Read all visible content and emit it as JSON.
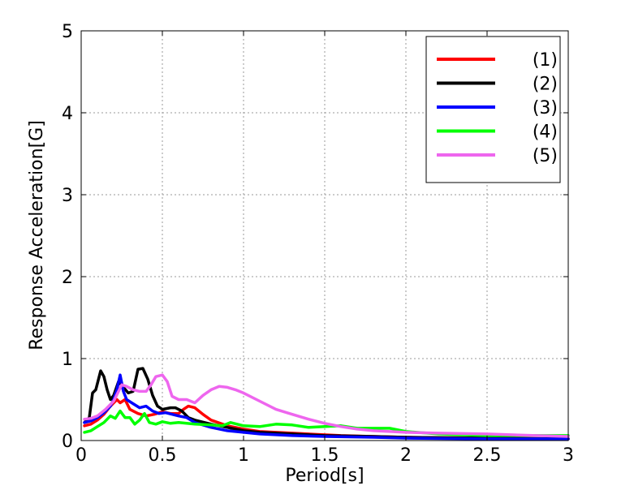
{
  "chart_data": {
    "type": "line",
    "title": "",
    "xlabel": "Period[s]",
    "ylabel": "Response Acceleration[G]",
    "xlim": [
      0,
      3
    ],
    "ylim": [
      0,
      5
    ],
    "x_ticks": [
      "0",
      "0.5",
      "1",
      "1.5",
      "2",
      "2.5",
      "3"
    ],
    "y_ticks": [
      "0",
      "1",
      "2",
      "3",
      "4",
      "5"
    ],
    "grid": true,
    "legend_position": "top-right",
    "series": [
      {
        "name": "(1)",
        "color": "#ff0000",
        "points": [
          [
            0.02,
            0.18
          ],
          [
            0.06,
            0.2
          ],
          [
            0.1,
            0.25
          ],
          [
            0.14,
            0.32
          ],
          [
            0.18,
            0.42
          ],
          [
            0.22,
            0.5
          ],
          [
            0.24,
            0.46
          ],
          [
            0.27,
            0.5
          ],
          [
            0.3,
            0.38
          ],
          [
            0.35,
            0.33
          ],
          [
            0.4,
            0.3
          ],
          [
            0.45,
            0.32
          ],
          [
            0.5,
            0.35
          ],
          [
            0.55,
            0.33
          ],
          [
            0.6,
            0.33
          ],
          [
            0.63,
            0.38
          ],
          [
            0.66,
            0.42
          ],
          [
            0.7,
            0.4
          ],
          [
            0.75,
            0.32
          ],
          [
            0.8,
            0.25
          ],
          [
            0.9,
            0.18
          ],
          [
            1.0,
            0.14
          ],
          [
            1.1,
            0.11
          ],
          [
            1.2,
            0.1
          ],
          [
            1.4,
            0.08
          ],
          [
            1.6,
            0.06
          ],
          [
            1.8,
            0.05
          ],
          [
            2.0,
            0.04
          ],
          [
            2.5,
            0.03
          ],
          [
            3.0,
            0.02
          ]
        ]
      },
      {
        "name": "(2)",
        "color": "#000000",
        "points": [
          [
            0.02,
            0.22
          ],
          [
            0.05,
            0.28
          ],
          [
            0.07,
            0.58
          ],
          [
            0.09,
            0.62
          ],
          [
            0.12,
            0.85
          ],
          [
            0.14,
            0.78
          ],
          [
            0.16,
            0.62
          ],
          [
            0.18,
            0.5
          ],
          [
            0.2,
            0.55
          ],
          [
            0.23,
            0.72
          ],
          [
            0.26,
            0.65
          ],
          [
            0.29,
            0.58
          ],
          [
            0.32,
            0.6
          ],
          [
            0.35,
            0.87
          ],
          [
            0.38,
            0.88
          ],
          [
            0.41,
            0.75
          ],
          [
            0.44,
            0.55
          ],
          [
            0.47,
            0.42
          ],
          [
            0.5,
            0.38
          ],
          [
            0.55,
            0.4
          ],
          [
            0.58,
            0.4
          ],
          [
            0.62,
            0.36
          ],
          [
            0.66,
            0.28
          ],
          [
            0.7,
            0.25
          ],
          [
            0.8,
            0.2
          ],
          [
            0.9,
            0.16
          ],
          [
            1.0,
            0.12
          ],
          [
            1.1,
            0.1
          ],
          [
            1.3,
            0.08
          ],
          [
            1.5,
            0.06
          ],
          [
            1.8,
            0.05
          ],
          [
            2.0,
            0.04
          ],
          [
            2.5,
            0.03
          ],
          [
            3.0,
            0.02
          ]
        ]
      },
      {
        "name": "(3)",
        "color": "#0000ff",
        "points": [
          [
            0.02,
            0.22
          ],
          [
            0.06,
            0.24
          ],
          [
            0.1,
            0.28
          ],
          [
            0.14,
            0.34
          ],
          [
            0.18,
            0.42
          ],
          [
            0.2,
            0.5
          ],
          [
            0.22,
            0.62
          ],
          [
            0.24,
            0.8
          ],
          [
            0.26,
            0.6
          ],
          [
            0.28,
            0.5
          ],
          [
            0.32,
            0.45
          ],
          [
            0.36,
            0.4
          ],
          [
            0.4,
            0.42
          ],
          [
            0.44,
            0.36
          ],
          [
            0.48,
            0.33
          ],
          [
            0.52,
            0.34
          ],
          [
            0.56,
            0.32
          ],
          [
            0.6,
            0.3
          ],
          [
            0.65,
            0.28
          ],
          [
            0.7,
            0.22
          ],
          [
            0.8,
            0.16
          ],
          [
            0.9,
            0.12
          ],
          [
            1.0,
            0.1
          ],
          [
            1.1,
            0.08
          ],
          [
            1.3,
            0.06
          ],
          [
            1.5,
            0.05
          ],
          [
            1.8,
            0.04
          ],
          [
            2.0,
            0.03
          ],
          [
            2.5,
            0.02
          ],
          [
            3.0,
            0.02
          ]
        ]
      },
      {
        "name": "(4)",
        "color": "#00ff00",
        "points": [
          [
            0.02,
            0.1
          ],
          [
            0.06,
            0.12
          ],
          [
            0.1,
            0.17
          ],
          [
            0.14,
            0.22
          ],
          [
            0.18,
            0.3
          ],
          [
            0.21,
            0.27
          ],
          [
            0.24,
            0.36
          ],
          [
            0.27,
            0.28
          ],
          [
            0.3,
            0.28
          ],
          [
            0.33,
            0.2
          ],
          [
            0.36,
            0.25
          ],
          [
            0.39,
            0.33
          ],
          [
            0.42,
            0.22
          ],
          [
            0.46,
            0.2
          ],
          [
            0.5,
            0.23
          ],
          [
            0.55,
            0.21
          ],
          [
            0.6,
            0.22
          ],
          [
            0.7,
            0.2
          ],
          [
            0.8,
            0.19
          ],
          [
            0.87,
            0.18
          ],
          [
            0.92,
            0.22
          ],
          [
            0.96,
            0.2
          ],
          [
            1.0,
            0.18
          ],
          [
            1.1,
            0.17
          ],
          [
            1.2,
            0.2
          ],
          [
            1.3,
            0.19
          ],
          [
            1.4,
            0.16
          ],
          [
            1.5,
            0.17
          ],
          [
            1.6,
            0.18
          ],
          [
            1.7,
            0.15
          ],
          [
            1.8,
            0.15
          ],
          [
            1.9,
            0.15
          ],
          [
            2.0,
            0.11
          ],
          [
            2.2,
            0.08
          ],
          [
            2.5,
            0.06
          ],
          [
            2.8,
            0.06
          ],
          [
            3.0,
            0.06
          ]
        ]
      },
      {
        "name": "(5)",
        "color": "#ee66ee",
        "points": [
          [
            0.02,
            0.26
          ],
          [
            0.06,
            0.27
          ],
          [
            0.1,
            0.3
          ],
          [
            0.15,
            0.38
          ],
          [
            0.2,
            0.48
          ],
          [
            0.25,
            0.68
          ],
          [
            0.28,
            0.66
          ],
          [
            0.32,
            0.62
          ],
          [
            0.36,
            0.6
          ],
          [
            0.4,
            0.6
          ],
          [
            0.43,
            0.68
          ],
          [
            0.46,
            0.78
          ],
          [
            0.5,
            0.8
          ],
          [
            0.53,
            0.72
          ],
          [
            0.56,
            0.54
          ],
          [
            0.6,
            0.5
          ],
          [
            0.65,
            0.5
          ],
          [
            0.7,
            0.46
          ],
          [
            0.75,
            0.55
          ],
          [
            0.8,
            0.62
          ],
          [
            0.85,
            0.66
          ],
          [
            0.9,
            0.65
          ],
          [
            0.95,
            0.62
          ],
          [
            1.0,
            0.58
          ],
          [
            1.1,
            0.48
          ],
          [
            1.2,
            0.38
          ],
          [
            1.3,
            0.32
          ],
          [
            1.4,
            0.26
          ],
          [
            1.5,
            0.21
          ],
          [
            1.6,
            0.17
          ],
          [
            1.7,
            0.14
          ],
          [
            1.8,
            0.12
          ],
          [
            1.9,
            0.11
          ],
          [
            2.0,
            0.1
          ],
          [
            2.2,
            0.09
          ],
          [
            2.5,
            0.08
          ],
          [
            2.8,
            0.06
          ],
          [
            3.0,
            0.05
          ]
        ]
      }
    ]
  }
}
